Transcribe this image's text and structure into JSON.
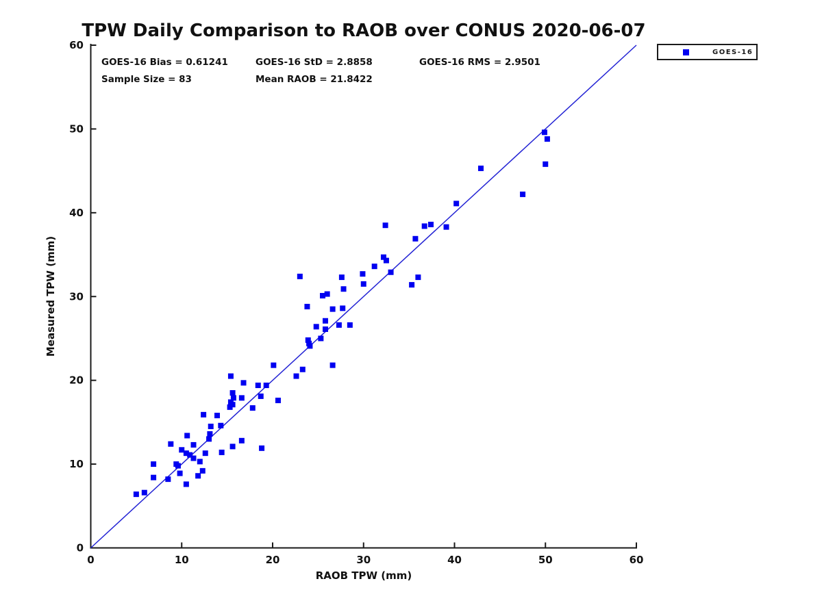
{
  "chart_data": {
    "type": "scatter",
    "title": "TPW Daily Comparison to RAOB over CONUS 2020-06-07",
    "xlabel": "RAOB TPW (mm)",
    "ylabel": "Measured TPW (mm)",
    "xlim": [
      0,
      60
    ],
    "ylim": [
      0,
      60
    ],
    "xticks": [
      0,
      10,
      20,
      30,
      40,
      50,
      60
    ],
    "yticks": [
      0,
      10,
      20,
      30,
      40,
      50,
      60
    ],
    "grid": false,
    "axes_color": "#1a1a1a",
    "stats": {
      "bias": "GOES-16 Bias = 0.61241",
      "std": "GOES-16 StD = 2.8858",
      "rms": "GOES-16 RMS = 2.9501",
      "sample_size": "Sample Size = 83",
      "mean_raob": "Mean RAOB = 21.8422"
    },
    "reference_line": {
      "from": [
        0,
        0
      ],
      "to": [
        60,
        60
      ],
      "color": "#2222d4",
      "width": 1.5
    },
    "legend": {
      "position": "outside-top-right",
      "label": "GOES-16"
    },
    "series": [
      {
        "name": "GOES-16",
        "marker": "square",
        "marker_size": 8,
        "color": "#0000f0",
        "points": [
          [
            5.0,
            6.4
          ],
          [
            5.9,
            6.6
          ],
          [
            6.9,
            8.4
          ],
          [
            6.9,
            10.0
          ],
          [
            8.5,
            8.2
          ],
          [
            8.8,
            12.4
          ],
          [
            9.4,
            10.0
          ],
          [
            9.6,
            9.8
          ],
          [
            9.8,
            8.9
          ],
          [
            10.0,
            11.7
          ],
          [
            10.5,
            7.6
          ],
          [
            10.5,
            11.3
          ],
          [
            10.6,
            13.4
          ],
          [
            10.9,
            11.1
          ],
          [
            11.3,
            10.7
          ],
          [
            11.3,
            12.3
          ],
          [
            11.8,
            8.6
          ],
          [
            12.0,
            10.3
          ],
          [
            12.3,
            9.2
          ],
          [
            12.4,
            15.9
          ],
          [
            12.6,
            11.3
          ],
          [
            13.0,
            13.0
          ],
          [
            13.1,
            13.6
          ],
          [
            13.2,
            14.5
          ],
          [
            13.9,
            15.8
          ],
          [
            14.3,
            14.6
          ],
          [
            14.4,
            11.4
          ],
          [
            15.6,
            12.1
          ],
          [
            16.6,
            12.8
          ],
          [
            18.8,
            11.9
          ],
          [
            15.6,
            18.5
          ],
          [
            15.7,
            17.9
          ],
          [
            15.4,
            17.4
          ],
          [
            15.6,
            17.1
          ],
          [
            15.3,
            16.8
          ],
          [
            16.6,
            17.9
          ],
          [
            17.8,
            16.7
          ],
          [
            15.4,
            20.5
          ],
          [
            16.8,
            19.7
          ],
          [
            18.4,
            19.4
          ],
          [
            18.7,
            18.1
          ],
          [
            19.3,
            19.4
          ],
          [
            20.1,
            21.8
          ],
          [
            20.6,
            17.6
          ],
          [
            22.6,
            20.5
          ],
          [
            23.3,
            21.3
          ],
          [
            23.9,
            24.8
          ],
          [
            24.0,
            24.4
          ],
          [
            24.1,
            24.1
          ],
          [
            24.8,
            26.4
          ],
          [
            25.3,
            25.0
          ],
          [
            25.8,
            26.1
          ],
          [
            25.8,
            27.1
          ],
          [
            26.6,
            21.8
          ],
          [
            27.3,
            26.6
          ],
          [
            28.5,
            26.6
          ],
          [
            23.8,
            28.8
          ],
          [
            26.6,
            28.5
          ],
          [
            27.7,
            28.6
          ],
          [
            25.5,
            30.1
          ],
          [
            26.0,
            30.3
          ],
          [
            27.8,
            30.9
          ],
          [
            23.0,
            32.4
          ],
          [
            27.6,
            32.3
          ],
          [
            29.9,
            32.7
          ],
          [
            30.0,
            31.5
          ],
          [
            31.2,
            33.6
          ],
          [
            32.2,
            34.7
          ],
          [
            32.5,
            34.3
          ],
          [
            33.0,
            32.9
          ],
          [
            35.3,
            31.4
          ],
          [
            36.0,
            32.3
          ],
          [
            32.4,
            38.5
          ],
          [
            35.7,
            36.9
          ],
          [
            36.7,
            38.4
          ],
          [
            37.4,
            38.6
          ],
          [
            39.1,
            38.3
          ],
          [
            40.2,
            41.1
          ],
          [
            42.9,
            45.3
          ],
          [
            47.5,
            42.2
          ],
          [
            49.9,
            49.6
          ],
          [
            50.2,
            48.8
          ],
          [
            50.0,
            45.8
          ]
        ]
      }
    ]
  }
}
